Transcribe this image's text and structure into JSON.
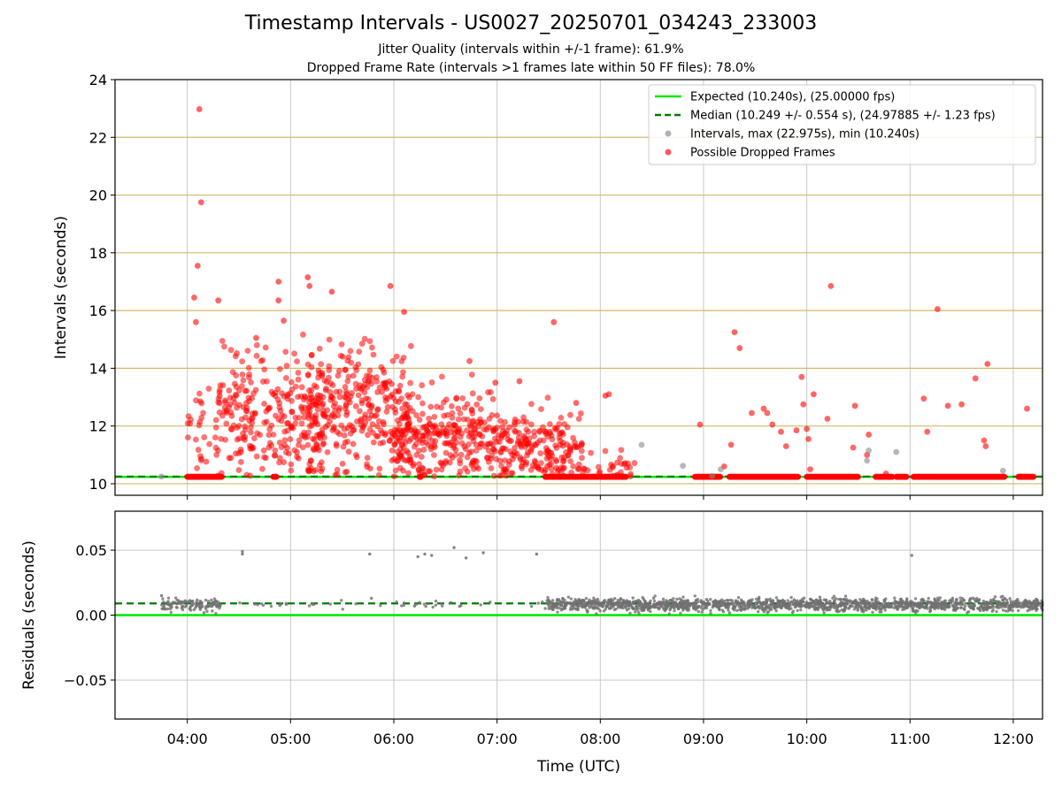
{
  "figure": {
    "title": "Timestamp Intervals - US0027_20250701_034243_233003",
    "subtitle_1": "Jitter Quality (intervals within +/-1 frame): 61.9%",
    "subtitle_2": "Dropped Frame Rate (intervals >1 frames late within 50 FF files): 78.0%",
    "xlabel": "Time (UTC)"
  },
  "colors": {
    "expected": "#00e600",
    "median": "#007a00",
    "intervals": "#888888",
    "dropped": "#ff0000",
    "residuals": "#707070",
    "hline_grid": "#d4b96a",
    "vgrid": "#c8c8c8"
  },
  "chart_data": [
    {
      "type": "scatter",
      "panel": "intervals",
      "ylabel": "Intervals (seconds)",
      "xlim": [
        "03:18",
        "12:17"
      ],
      "ylim": [
        9.6,
        24
      ],
      "x_ticks": [
        "04:00",
        "05:00",
        "06:00",
        "07:00",
        "08:00",
        "09:00",
        "10:00",
        "11:00",
        "12:00"
      ],
      "y_ticks": [
        10,
        12,
        14,
        16,
        18,
        20,
        22,
        24
      ],
      "horizontal_gridlines": [
        10,
        12,
        14,
        16,
        18,
        20,
        22
      ],
      "grid": true,
      "legend_position": "top-right",
      "series": [
        {
          "name": "Expected (10.240s), (25.00000 fps)",
          "kind": "hline",
          "y": 10.24
        },
        {
          "name": "Median (10.249 +/- 0.554 s), (24.97885 +/- 1.23 fps)",
          "kind": "dashed-hline",
          "y": 10.249
        },
        {
          "name": "Intervals, max (22.975s), min (10.240s)",
          "kind": "scatter",
          "points": [
            [
              "08:24",
              11.35
            ],
            [
              "08:48",
              10.62
            ],
            [
              "09:10",
              10.5
            ],
            [
              "10:36",
              11.15
            ],
            [
              "10:35",
              10.8
            ],
            [
              "10:52",
              11.1
            ],
            [
              "11:54",
              10.45
            ],
            [
              "03:45",
              10.25
            ],
            [
              "09:05",
              10.27
            ]
          ]
        },
        {
          "name": "Possible Dropped Frames",
          "kind": "scatter",
          "outliers": [
            [
              "04:07",
              22.975
            ],
            [
              "04:08",
              19.75
            ],
            [
              "04:04",
              16.45
            ],
            [
              "04:06",
              17.55
            ],
            [
              "04:05",
              15.6
            ],
            [
              "04:18",
              16.35
            ],
            [
              "04:40",
              15.05
            ],
            [
              "04:53",
              17.0
            ],
            [
              "04:53",
              16.35
            ],
            [
              "04:56",
              15.65
            ],
            [
              "05:10",
              17.15
            ],
            [
              "05:11",
              16.85
            ],
            [
              "05:24",
              16.65
            ],
            [
              "05:58",
              16.85
            ],
            [
              "06:06",
              15.95
            ],
            [
              "07:33",
              15.6
            ],
            [
              "06:44",
              14.25
            ],
            [
              "06:59",
              13.5
            ],
            [
              "07:13",
              13.55
            ],
            [
              "07:46",
              12.8
            ],
            [
              "08:05",
              13.1
            ],
            [
              "08:03",
              13.05
            ],
            [
              "08:58",
              12.05
            ],
            [
              "09:16",
              11.35
            ],
            [
              "09:18",
              15.25
            ],
            [
              "09:21",
              14.7
            ],
            [
              "09:28",
              12.45
            ],
            [
              "09:35",
              12.6
            ],
            [
              "09:37",
              12.45
            ],
            [
              "09:40",
              12.05
            ],
            [
              "09:45",
              11.8
            ],
            [
              "09:48",
              11.3
            ],
            [
              "09:54",
              11.85
            ],
            [
              "09:57",
              13.7
            ],
            [
              "09:58",
              12.75
            ],
            [
              "10:00",
              11.9
            ],
            [
              "10:01",
              11.55
            ],
            [
              "10:02",
              10.5
            ],
            [
              "10:04",
              13.1
            ],
            [
              "10:12",
              12.25
            ],
            [
              "10:14",
              16.85
            ],
            [
              "10:28",
              12.7
            ],
            [
              "10:27",
              11.25
            ],
            [
              "10:35",
              11.0
            ],
            [
              "10:36",
              11.7
            ],
            [
              "11:08",
              12.95
            ],
            [
              "11:10",
              11.8
            ],
            [
              "11:16",
              16.05
            ],
            [
              "11:22",
              12.7
            ],
            [
              "11:30",
              12.75
            ],
            [
              "11:38",
              13.65
            ],
            [
              "11:43",
              11.5
            ],
            [
              "11:44",
              11.3
            ],
            [
              "11:45",
              14.15
            ],
            [
              "12:08",
              12.6
            ],
            [
              "09:12",
              10.6
            ],
            [
              "10:46",
              10.35
            ]
          ],
          "clusters": [
            {
              "x_range": [
                "04:00",
                "04:18"
              ],
              "y_center": 11.4,
              "y_spread": 1.6,
              "count": 30
            },
            {
              "x_range": [
                "04:18",
                "05:20"
              ],
              "y_center": 12.4,
              "y_spread": 1.6,
              "count": 260
            },
            {
              "x_range": [
                "05:10",
                "06:10"
              ],
              "y_center": 12.6,
              "y_spread": 1.5,
              "count": 300
            },
            {
              "x_range": [
                "06:00",
                "07:00"
              ],
              "y_center": 11.6,
              "y_spread": 1.1,
              "count": 280
            },
            {
              "x_range": [
                "07:00",
                "07:50"
              ],
              "y_center": 11.2,
              "y_spread": 0.9,
              "count": 200
            },
            {
              "x_range": [
                "07:50",
                "08:20"
              ],
              "y_center": 10.6,
              "y_spread": 0.5,
              "count": 30
            }
          ],
          "baseline_runs": [
            [
              "04:00",
              "04:20"
            ],
            [
              "04:50",
              "04:52"
            ],
            [
              "06:15",
              "06:16"
            ],
            [
              "07:28",
              "08:15"
            ],
            [
              "08:55",
              "09:10"
            ],
            [
              "09:15",
              "09:55"
            ],
            [
              "10:00",
              "10:30"
            ],
            [
              "10:40",
              "10:50"
            ],
            [
              "10:52",
              "10:58"
            ],
            [
              "11:02",
              "11:55"
            ],
            [
              "12:03",
              "12:12"
            ]
          ],
          "baseline_y": 10.24
        }
      ]
    },
    {
      "type": "scatter",
      "panel": "residuals",
      "ylabel": "Residuals (seconds)",
      "xlim": [
        "03:18",
        "12:17"
      ],
      "ylim": [
        -0.08,
        0.08
      ],
      "y_ticks": [
        -0.05,
        0.0,
        0.05
      ],
      "y_tick_labels": [
        "−0.05",
        "0.00",
        "0.05"
      ],
      "x_ticks": [
        "04:00",
        "05:00",
        "06:00",
        "07:00",
        "08:00",
        "09:00",
        "10:00",
        "11:00",
        "12:00"
      ],
      "grid": true,
      "series": [
        {
          "kind": "hline",
          "y": 0.0
        },
        {
          "kind": "dashed-hline",
          "y": 0.009
        },
        {
          "kind": "scatter",
          "points": [
            [
              "03:45",
              0.015
            ],
            [
              "04:32",
              0.049
            ],
            [
              "04:32",
              0.047
            ],
            [
              "05:46",
              0.047
            ],
            [
              "06:14",
              0.045
            ],
            [
              "06:18",
              0.047
            ],
            [
              "06:22",
              0.046
            ],
            [
              "06:35",
              0.052
            ],
            [
              "06:42",
              0.044
            ],
            [
              "06:52",
              0.048
            ],
            [
              "07:23",
              0.047
            ],
            [
              "11:01",
              0.046
            ],
            [
              "05:47",
              0.013
            ],
            [
              "06:12",
              0.007
            ]
          ],
          "clusters": [
            {
              "x_range": [
                "03:45",
                "04:20"
              ],
              "y_center": 0.008,
              "y_spread": 0.004,
              "count": 120
            },
            {
              "x_range": [
                "04:20",
                "07:28"
              ],
              "y_center": 0.008,
              "y_spread": 0.002,
              "count": 40
            },
            {
              "x_range": [
                "07:28",
                "12:17"
              ],
              "y_center": 0.008,
              "y_spread": 0.004,
              "count": 1600
            }
          ]
        }
      ]
    }
  ]
}
